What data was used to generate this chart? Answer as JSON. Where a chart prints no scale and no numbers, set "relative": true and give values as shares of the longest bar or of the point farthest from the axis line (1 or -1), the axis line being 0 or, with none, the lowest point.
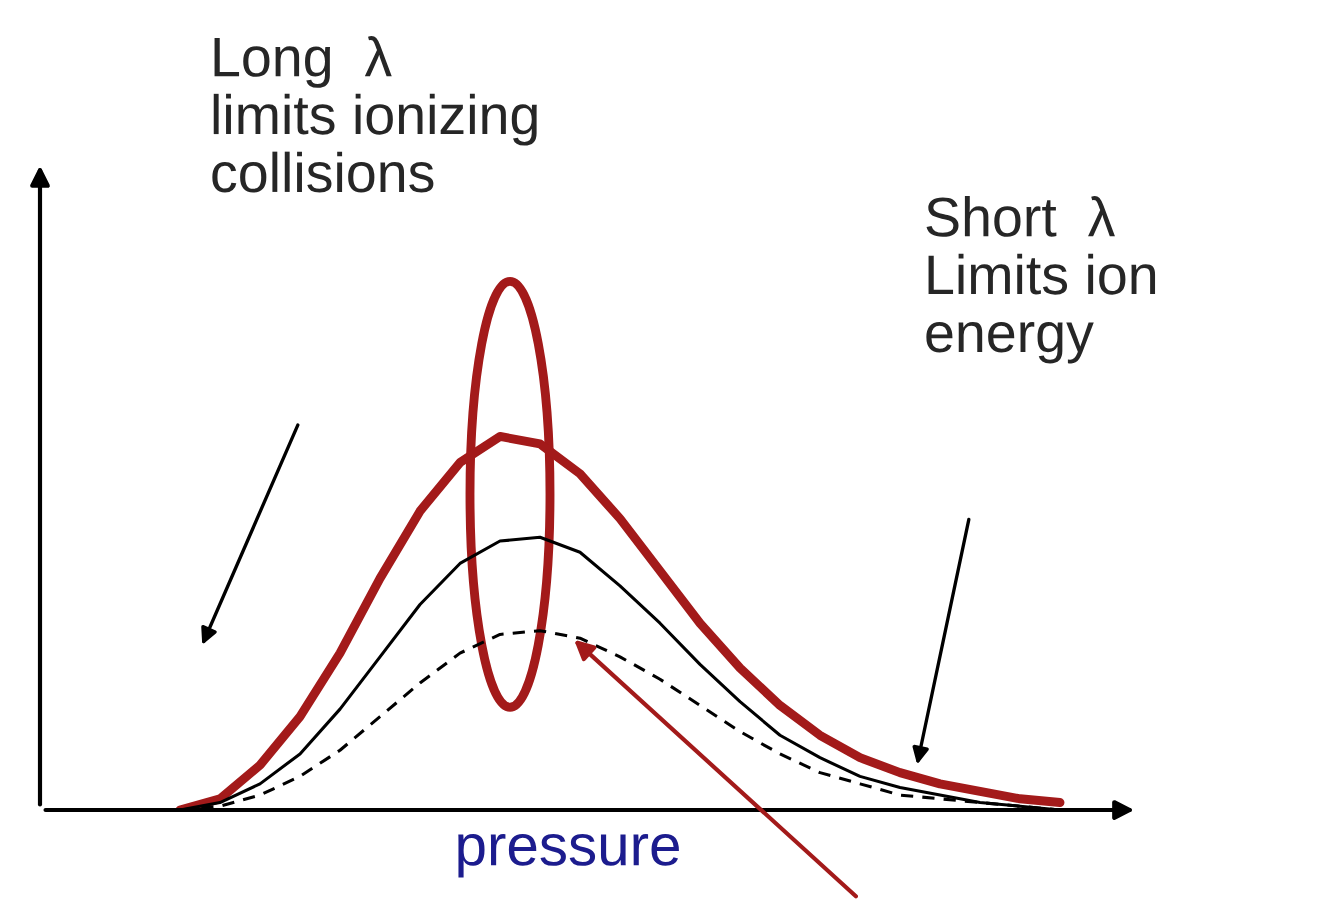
{
  "chart_data": {
    "type": "line",
    "relative": true,
    "xlabel": "pressure",
    "categories": [
      null,
      null,
      null,
      null,
      null,
      null,
      null,
      null,
      null,
      null,
      null,
      null,
      null,
      null,
      null,
      null,
      null,
      null,
      null,
      null,
      null,
      null,
      null
    ],
    "series": [
      {
        "color": "#a31a1a",
        "line_style": "solid",
        "values": [
          0,
          0.03,
          0.12,
          0.25,
          0.42,
          0.62,
          0.8,
          0.93,
          1.0,
          0.98,
          0.9,
          0.78,
          0.64,
          0.5,
          0.38,
          0.28,
          0.2,
          0.14,
          0.1,
          0.07,
          0.05,
          0.03,
          0.02
        ]
      },
      {
        "color": "#000000",
        "line_style": "solid",
        "values": [
          0,
          0.02,
          0.07,
          0.15,
          0.27,
          0.41,
          0.55,
          0.66,
          0.72,
          0.73,
          0.69,
          0.6,
          0.5,
          0.39,
          0.29,
          0.2,
          0.14,
          0.09,
          0.06,
          0.04,
          0.02,
          0.01,
          0
        ]
      },
      {
        "color": "#000000",
        "line_style": "dashed",
        "values": [
          0,
          0.01,
          0.04,
          0.09,
          0.16,
          0.25,
          0.34,
          0.42,
          0.47,
          0.48,
          0.46,
          0.41,
          0.35,
          0.28,
          0.21,
          0.15,
          0.1,
          0.07,
          0.04,
          0.03,
          0.02,
          0.01,
          0
        ]
      }
    ],
    "annotations": [
      "Long  λ\nlimits ionizing\ncollisions",
      "Short  λ\nLimits ion\nenergy"
    ],
    "legend": false,
    "marker": "none"
  }
}
